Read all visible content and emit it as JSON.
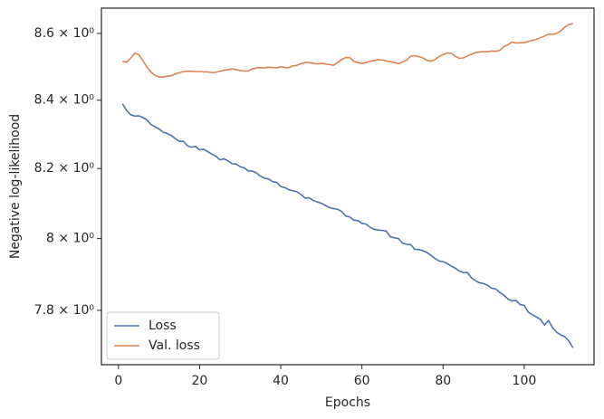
{
  "chart_data": {
    "type": "line",
    "xlabel": "Epochs",
    "ylabel": "Negative log-likelihood",
    "x": [
      1,
      2,
      3,
      4,
      5,
      6,
      7,
      8,
      9,
      10,
      11,
      12,
      13,
      14,
      15,
      16,
      17,
      18,
      19,
      20,
      21,
      22,
      23,
      24,
      25,
      26,
      27,
      28,
      29,
      30,
      31,
      32,
      33,
      34,
      35,
      36,
      37,
      38,
      39,
      40,
      41,
      42,
      43,
      44,
      45,
      46,
      47,
      48,
      49,
      50,
      51,
      52,
      53,
      54,
      55,
      56,
      57,
      58,
      59,
      60,
      61,
      62,
      63,
      64,
      65,
      66,
      67,
      68,
      69,
      70,
      71,
      72,
      73,
      74,
      75,
      76,
      77,
      78,
      79,
      80,
      81,
      82,
      83,
      84,
      85,
      86,
      87,
      88,
      89,
      90,
      91,
      92,
      93,
      94,
      95,
      96,
      97,
      98,
      99,
      100,
      101,
      102,
      103,
      104,
      105,
      106,
      107,
      108,
      109,
      110,
      111,
      112
    ],
    "series": [
      {
        "name": "Loss",
        "color": "#4c72b0",
        "values": [
          8.389,
          8.37,
          8.357,
          8.353,
          8.354,
          8.349,
          8.342,
          8.328,
          8.322,
          8.315,
          8.306,
          8.302,
          8.296,
          8.287,
          8.279,
          8.279,
          8.266,
          8.262,
          8.264,
          8.254,
          8.256,
          8.249,
          8.242,
          8.236,
          8.225,
          8.228,
          8.222,
          8.214,
          8.213,
          8.205,
          8.202,
          8.193,
          8.193,
          8.187,
          8.178,
          8.172,
          8.17,
          8.162,
          8.16,
          8.148,
          8.145,
          8.139,
          8.136,
          8.133,
          8.125,
          8.115,
          8.116,
          8.108,
          8.104,
          8.1,
          8.094,
          8.088,
          8.085,
          8.083,
          8.077,
          8.064,
          8.061,
          8.052,
          8.051,
          8.043,
          8.041,
          8.032,
          8.026,
          8.024,
          8.023,
          8.021,
          8.005,
          8.002,
          8.0,
          7.987,
          7.984,
          7.983,
          7.97,
          7.969,
          7.966,
          7.961,
          7.953,
          7.944,
          7.937,
          7.935,
          7.93,
          7.923,
          7.917,
          7.909,
          7.904,
          7.905,
          7.89,
          7.882,
          7.876,
          7.874,
          7.869,
          7.861,
          7.859,
          7.849,
          7.842,
          7.831,
          7.826,
          7.827,
          7.816,
          7.814,
          7.795,
          7.788,
          7.782,
          7.775,
          7.76,
          7.772,
          7.752,
          7.74,
          7.733,
          7.728,
          7.716,
          7.698
        ]
      },
      {
        "name": "Val. loss",
        "color": "#dd8452",
        "values": [
          8.516,
          8.513,
          8.525,
          8.54,
          8.536,
          8.518,
          8.499,
          8.484,
          8.474,
          8.469,
          8.469,
          8.471,
          8.473,
          8.478,
          8.482,
          8.485,
          8.486,
          8.486,
          8.485,
          8.485,
          8.484,
          8.484,
          8.482,
          8.483,
          8.486,
          8.489,
          8.491,
          8.493,
          8.491,
          8.488,
          8.487,
          8.487,
          8.493,
          8.496,
          8.497,
          8.496,
          8.498,
          8.497,
          8.496,
          8.5,
          8.497,
          8.497,
          8.502,
          8.504,
          8.509,
          8.512,
          8.512,
          8.51,
          8.508,
          8.51,
          8.508,
          8.506,
          8.504,
          8.512,
          8.521,
          8.527,
          8.527,
          8.516,
          8.512,
          8.51,
          8.512,
          8.516,
          8.518,
          8.521,
          8.52,
          8.517,
          8.515,
          8.512,
          8.509,
          8.514,
          8.519,
          8.531,
          8.533,
          8.53,
          8.526,
          8.519,
          8.516,
          8.521,
          8.53,
          8.536,
          8.541,
          8.54,
          8.531,
          8.525,
          8.526,
          8.532,
          8.537,
          8.542,
          8.544,
          8.545,
          8.545,
          8.547,
          8.546,
          8.549,
          8.56,
          8.566,
          8.574,
          8.571,
          8.572,
          8.572,
          8.576,
          8.579,
          8.582,
          8.587,
          8.592,
          8.598,
          8.597,
          8.6,
          8.608,
          8.619,
          8.627,
          8.63
        ]
      }
    ],
    "xlim": [
      -4.2,
      117.2
    ],
    "xticks": [
      0,
      20,
      40,
      60,
      80,
      100
    ],
    "ylim": [
      7.652,
      8.677
    ],
    "yscale": "log",
    "yticks": [
      {
        "value": 7.8,
        "label": "7.8 × 10⁰"
      },
      {
        "value": 8,
        "label": "8 × 10⁰"
      },
      {
        "value": 8.2,
        "label": "8.2 × 10⁰"
      },
      {
        "value": 8.4,
        "label": "8.4 × 10⁰"
      },
      {
        "value": 8.6,
        "label": "8.6 × 10⁰"
      }
    ],
    "legend": "lower left",
    "grid": false
  }
}
